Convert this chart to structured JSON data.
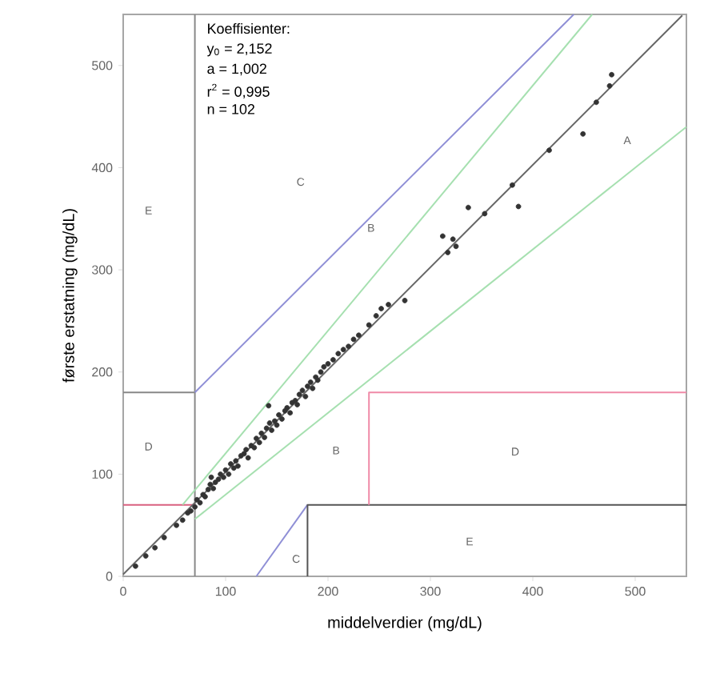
{
  "chart_data": {
    "type": "scatter",
    "xlabel": "middelverdier (mg/dL)",
    "ylabel": "første erstatning (mg/dL)",
    "xlim": [
      0,
      550
    ],
    "ylim": [
      0,
      550
    ],
    "xticks": [
      0,
      100,
      200,
      300,
      400,
      500
    ],
    "yticks": [
      0,
      100,
      200,
      300,
      400,
      500
    ],
    "grid": false,
    "series": [
      {
        "type": "line",
        "marker": "none",
        "color": "#888888",
        "x": [
          70,
          70
        ],
        "values": [
          0,
          550
        ]
      },
      {
        "type": "line",
        "marker": "none",
        "color": "#888888",
        "x": [
          0,
          70
        ],
        "values": [
          180,
          180
        ]
      },
      {
        "type": "line",
        "marker": "none",
        "color": "#d9607f",
        "x": [
          0,
          70
        ],
        "values": [
          70,
          70
        ]
      },
      {
        "type": "line",
        "marker": "none",
        "color": "#8f8fd6",
        "x": [
          70,
          440
        ],
        "values": [
          180,
          550
        ]
      },
      {
        "type": "line",
        "marker": "none",
        "color": "#a6e0b0",
        "x": [
          58,
          458
        ],
        "values": [
          70,
          550
        ]
      },
      {
        "type": "line",
        "marker": "none",
        "color": "#a6e0b0",
        "x": [
          70,
          550
        ],
        "values": [
          56,
          440
        ]
      },
      {
        "type": "line",
        "marker": "none",
        "color": "#8f8fd6",
        "x": [
          130,
          180
        ],
        "values": [
          0,
          70
        ]
      },
      {
        "type": "line",
        "marker": "none",
        "color": "#555555",
        "x": [
          180,
          180,
          550
        ],
        "values": [
          0,
          70,
          70
        ]
      },
      {
        "type": "line",
        "marker": "none",
        "color": "#f08aa8",
        "x": [
          240,
          240,
          550
        ],
        "values": [
          70,
          180,
          180
        ]
      },
      {
        "type": "line",
        "marker": "none",
        "color": "#666666",
        "x": [
          0,
          546
        ],
        "values": [
          2,
          549
        ]
      },
      {
        "color": "#333333",
        "x": [
          12,
          22,
          31,
          40,
          52,
          58,
          63,
          66,
          70,
          72,
          75,
          78,
          80,
          83,
          85,
          86,
          88,
          90,
          93,
          95,
          98,
          100,
          103,
          105,
          108,
          110,
          112,
          115,
          118,
          120,
          122,
          125,
          128,
          130,
          133,
          135,
          138,
          140,
          142,
          143,
          145,
          148,
          150,
          152,
          155,
          158,
          160,
          163,
          165,
          168,
          170,
          172,
          175,
          178,
          180,
          183,
          185,
          188,
          190,
          193,
          196,
          200,
          205,
          210,
          215,
          220,
          225,
          230,
          240,
          247,
          252,
          259,
          275,
          312,
          317,
          322,
          325,
          337,
          353,
          380,
          386,
          416,
          449,
          462,
          475,
          477
        ],
        "values": [
          10,
          20,
          28,
          38,
          50,
          55,
          62,
          64,
          68,
          75,
          72,
          80,
          78,
          85,
          90,
          97,
          86,
          92,
          95,
          100,
          97,
          104,
          100,
          110,
          106,
          113,
          108,
          118,
          120,
          124,
          116,
          128,
          126,
          135,
          131,
          140,
          136,
          145,
          167,
          150,
          143,
          152,
          148,
          158,
          154,
          162,
          165,
          160,
          170,
          172,
          168,
          178,
          182,
          176,
          186,
          190,
          184,
          195,
          192,
          200,
          205,
          208,
          212,
          218,
          222,
          225,
          232,
          236,
          246,
          255,
          262,
          266,
          270,
          333,
          317,
          330,
          323,
          361,
          355,
          383,
          362,
          417,
          433,
          464,
          480,
          491
        ]
      }
    ],
    "annotations": [
      "Koeffisienter:",
      "y$_{0}$ = 2,152",
      "a = 1,002",
      "r$^{2}$ = 0,995",
      "n = 102",
      "A",
      "B",
      "B",
      "C",
      "C",
      "D",
      "D",
      "E",
      "E"
    ]
  }
}
